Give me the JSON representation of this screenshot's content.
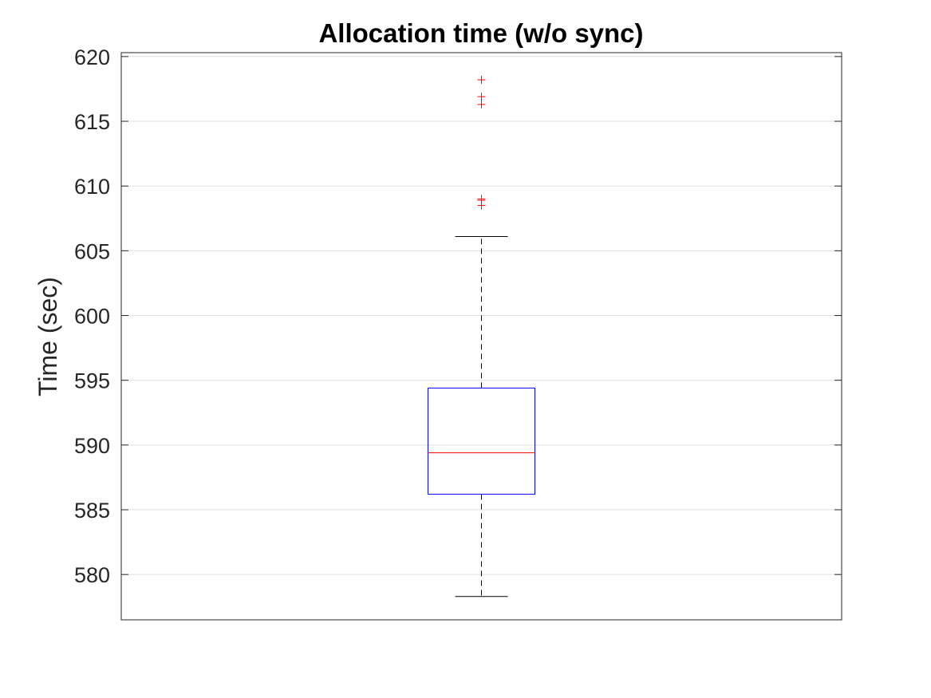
{
  "chart_data": {
    "type": "box",
    "title": "Allocation time (w/o sync)",
    "xlabel": "",
    "ylabel": "Time (sec)",
    "ylim": [
      576.5,
      620.3
    ],
    "yticks": [
      580,
      585,
      590,
      595,
      600,
      605,
      610,
      615,
      620
    ],
    "grid": true,
    "boxes": [
      {
        "whisker_low": 578.3,
        "q1": 586.2,
        "median": 589.4,
        "q3": 594.4,
        "whisker_high": 606.1,
        "outliers": [
          608.5,
          608.9,
          609.0,
          616.3,
          616.9,
          618.2
        ]
      }
    ],
    "colors": {
      "box": "#0000ff",
      "median": "#ff0000",
      "whisker": "#000000",
      "outlier": "#ff0000",
      "grid": "#dfdfdf",
      "axis": "#262626"
    }
  }
}
